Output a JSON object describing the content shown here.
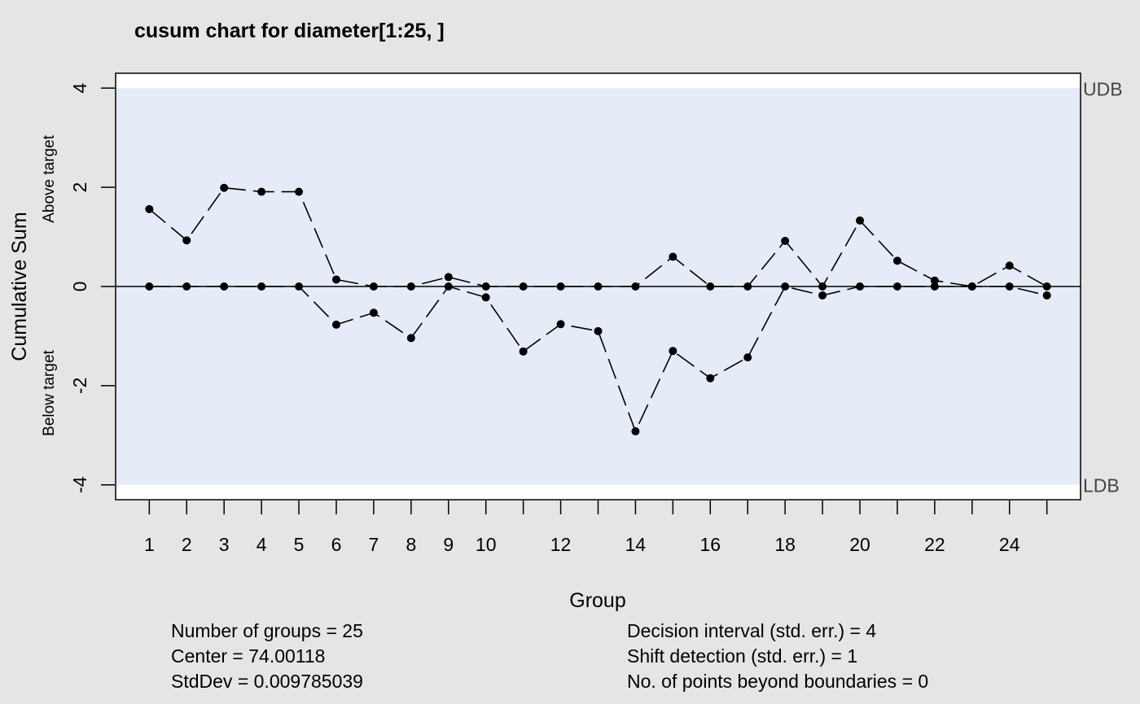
{
  "chart_data": {
    "type": "line",
    "title": "cusum chart for diameter[1:25, ]",
    "xlabel": "Group",
    "ylabel": "Cumulative Sum",
    "ylabel_upper": "Above target",
    "ylabel_lower": "Below target",
    "xlim": [
      0.1,
      25.9
    ],
    "ylim": [
      -4.3,
      4.3
    ],
    "decision_boundaries": {
      "upper": 4,
      "lower": -4,
      "upper_label": "UDB",
      "lower_label": "LDB"
    },
    "center_line": 0,
    "x_tick_labels": [
      "1",
      "2",
      "3",
      "4",
      "5",
      "6",
      "7",
      "8",
      "9",
      "10",
      "12",
      "14",
      "16",
      "18",
      "20",
      "22",
      "24"
    ],
    "y_tick_labels": [
      "4",
      "2",
      "0",
      "-2",
      "-4"
    ],
    "x": [
      1,
      2,
      3,
      4,
      5,
      6,
      7,
      8,
      9,
      10,
      11,
      12,
      13,
      14,
      15,
      16,
      17,
      18,
      19,
      20,
      21,
      22,
      23,
      24,
      25
    ],
    "series": [
      {
        "values": [
          1.56,
          0.93,
          1.99,
          1.91,
          1.91,
          0.14,
          0.0,
          0.0,
          0.19,
          0.0,
          0.0,
          0.0,
          0.0,
          0.0,
          0.6,
          0.0,
          0.0,
          0.92,
          0.0,
          1.33,
          0.52,
          0.12,
          0.0,
          0.42,
          0.0
        ]
      },
      {
        "values": [
          0.0,
          0.0,
          0.0,
          0.0,
          0.0,
          -0.77,
          -0.53,
          -1.04,
          0.0,
          -0.22,
          -1.31,
          -0.76,
          -0.9,
          -2.92,
          -1.3,
          -1.85,
          -1.43,
          0.0,
          -0.18,
          0.0,
          0.0,
          0.0,
          0.0,
          0.0,
          -0.18
        ]
      }
    ],
    "colors": {
      "background": "#e5e5e5",
      "plot_region": "#e6ecf7",
      "plot_outside_limits": "#ffffff",
      "points": "#000000"
    }
  },
  "stats": {
    "groups": "Number of groups = 25",
    "center": "Center = 74.00118",
    "stddev": "StdDev = 0.009785039",
    "decision_interval": "Decision interval (std. err.) = 4",
    "shift_detection": "Shift detection (std. err.) = 1",
    "points_beyond": "No. of points beyond boundaries = 0"
  }
}
